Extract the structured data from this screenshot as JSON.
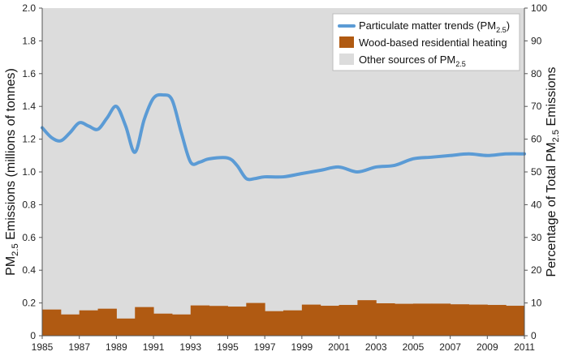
{
  "chart_data": {
    "type": "bar+line",
    "title": "",
    "x_tick_labels": [
      "1985",
      "1987",
      "1989",
      "1991",
      "1993",
      "1995",
      "1997",
      "1999",
      "2001",
      "2003",
      "2005",
      "2007",
      "2009",
      "2011"
    ],
    "y_left": {
      "label_parts": [
        "PM",
        "2.5",
        " Emissions (millions of tonnes)"
      ],
      "range": [
        0,
        2.0
      ],
      "tick_labels": [
        "0",
        "0.2",
        "0.4",
        "0.6",
        "0.8",
        "1.0",
        "1.2",
        "1.4",
        "1.6",
        "1.8",
        "2.0"
      ]
    },
    "y_right": {
      "label_parts": [
        "Percentage of Total PM",
        "2.5",
        " Emissions"
      ],
      "range": [
        0,
        100
      ],
      "tick_labels": [
        "0",
        "10",
        "20",
        "30",
        "40",
        "50",
        "60",
        "70",
        "80",
        "90",
        "100"
      ]
    },
    "background_series": {
      "name_parts": [
        "Other sources of PM",
        "2.5"
      ],
      "color": "#dcdcdc"
    },
    "bar_series": {
      "name": "Wood-based residential heating",
      "color": "#b05a12",
      "x": [
        1985,
        1986,
        1987,
        1988,
        1989,
        1990,
        1991,
        1992,
        1993,
        1994,
        1995,
        1996,
        1997,
        1998,
        1999,
        2000,
        2001,
        2002,
        2003,
        2004,
        2005,
        2006,
        2007,
        2008,
        2009,
        2010
      ],
      "values": [
        0.16,
        0.13,
        0.155,
        0.165,
        0.105,
        0.175,
        0.135,
        0.13,
        0.185,
        0.182,
        0.178,
        0.2,
        0.15,
        0.155,
        0.19,
        0.183,
        0.188,
        0.217,
        0.198,
        0.195,
        0.196,
        0.196,
        0.192,
        0.19,
        0.188,
        0.183
      ]
    },
    "line_series": {
      "name_parts": [
        "Particulate matter trends (PM",
        "2.5",
        ")"
      ],
      "color": "#5b9bd5",
      "x": [
        1985,
        1985.5,
        1986,
        1986.5,
        1987,
        1987.5,
        1988,
        1988.5,
        1989,
        1989.5,
        1990,
        1990.5,
        1991,
        1991.5,
        1992,
        1992.5,
        1993,
        1993.5,
        1994,
        1995,
        1995.5,
        1996,
        1996.5,
        1997,
        1998,
        1999,
        2000,
        2001,
        2002,
        2003,
        2004,
        2005,
        2006,
        2007,
        2008,
        2009,
        2010,
        2011
      ],
      "values": [
        1.27,
        1.21,
        1.19,
        1.24,
        1.3,
        1.28,
        1.26,
        1.33,
        1.4,
        1.28,
        1.12,
        1.32,
        1.45,
        1.47,
        1.44,
        1.24,
        1.06,
        1.06,
        1.08,
        1.085,
        1.04,
        0.96,
        0.96,
        0.97,
        0.97,
        0.99,
        1.01,
        1.03,
        1.0,
        1.03,
        1.04,
        1.08,
        1.09,
        1.1,
        1.11,
        1.1,
        1.11,
        1.11
      ]
    },
    "legend_position": "top-right",
    "grid": false
  }
}
